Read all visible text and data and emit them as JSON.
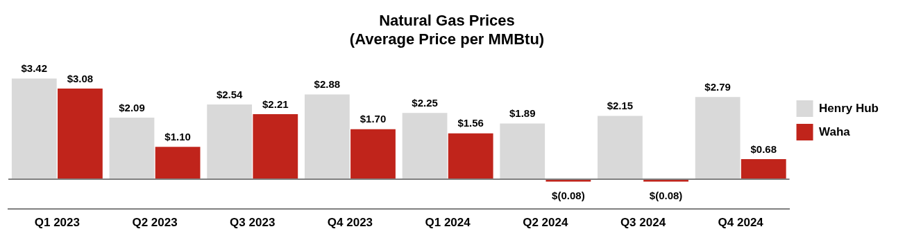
{
  "chart_data": {
    "type": "bar",
    "title": "Natural Gas Prices",
    "subtitle": "(Average Price per MMBtu)",
    "categories": [
      "Q1 2023",
      "Q2 2023",
      "Q3 2023",
      "Q4 2023",
      "Q1 2024",
      "Q2 2024",
      "Q3 2024",
      "Q4 2024"
    ],
    "series": [
      {
        "name": "Henry Hub",
        "color": "#d9d9d9",
        "values": [
          3.42,
          2.09,
          2.54,
          2.88,
          2.25,
          1.89,
          2.15,
          2.79
        ],
        "value_labels": [
          "$3.42",
          "$2.09",
          "$2.54",
          "$2.88",
          "$2.25",
          "$1.89",
          "$2.15",
          "$2.79"
        ]
      },
      {
        "name": "Waha",
        "color": "#c0241b",
        "values": [
          3.08,
          1.1,
          2.21,
          1.7,
          1.56,
          -0.08,
          -0.08,
          0.68
        ],
        "value_labels": [
          "$3.08",
          "$1.10",
          "$2.21",
          "$1.70",
          "$1.56",
          "$(0.08)",
          "$(0.08)",
          "$0.68"
        ]
      }
    ],
    "ref_lines": [
      {
        "axis": "y",
        "value": 0,
        "color": "#7f7f7f"
      }
    ],
    "legend": "right",
    "grid": false
  }
}
